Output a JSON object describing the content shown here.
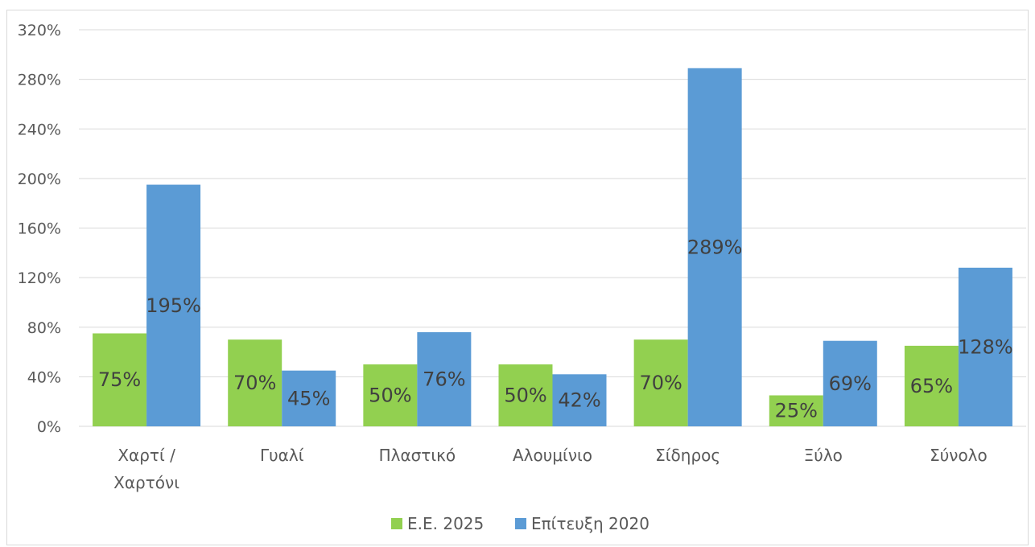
{
  "chart_data": {
    "type": "bar",
    "categories": [
      [
        "Χαρτί /",
        "Χαρτόνι"
      ],
      [
        "Γυαλί"
      ],
      [
        "Πλαστικό"
      ],
      [
        "Αλουμίνιο"
      ],
      [
        "Σίδηρος"
      ],
      [
        "Ξύλο"
      ],
      [
        "Σύνολο"
      ]
    ],
    "series": [
      {
        "name": "Ε.Ε. 2025",
        "color": "#92d050",
        "values": [
          75,
          70,
          50,
          50,
          70,
          25,
          65
        ],
        "labels": [
          "75%",
          "70%",
          "50%",
          "50%",
          "70%",
          "25%",
          "65%"
        ]
      },
      {
        "name": "Επίτευξη 2020",
        "color": "#5b9bd5",
        "values": [
          195,
          45,
          76,
          42,
          289,
          69,
          128
        ],
        "labels": [
          "195%",
          "45%",
          "76%",
          "42%",
          "289%",
          "69%",
          "128%"
        ]
      }
    ],
    "y_ticks": [
      "0%",
      "40%",
      "80%",
      "120%",
      "160%",
      "200%",
      "240%",
      "280%",
      "320%"
    ],
    "ylim": [
      0,
      320
    ],
    "y_unit": "%",
    "grid": true,
    "grid_color": "#d9d9d9",
    "legend_position": "bottom"
  }
}
